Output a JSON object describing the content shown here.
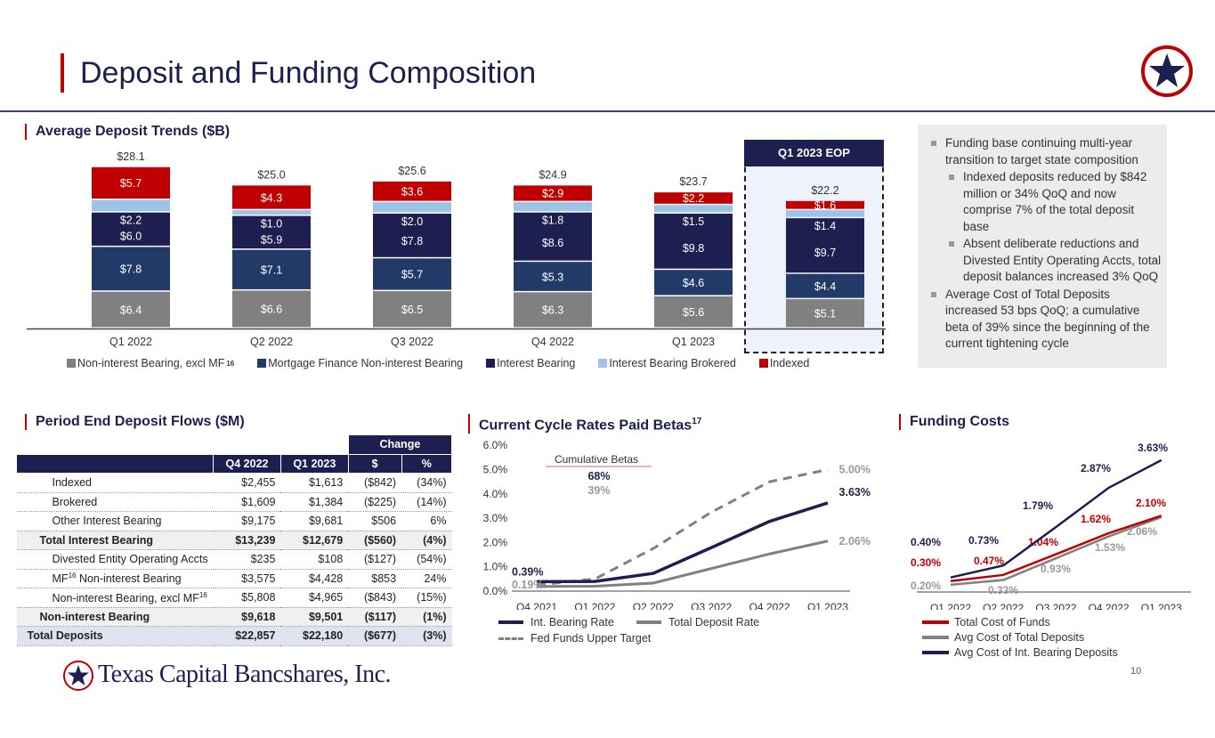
{
  "header": {
    "title": "Deposit and Funding Composition"
  },
  "sections": {
    "avg_deposits": "Average Deposit Trends ($B)",
    "flows": "Period End Deposit Flows ($M)",
    "betas": "Current Cycle Rates Paid Betas",
    "betas_sup": "17",
    "funding": "Funding Costs"
  },
  "eop_label": "Q1 2023 EOP",
  "bullets": [
    {
      "text": "Funding base continuing multi-year transition to target state composition",
      "level": 1
    },
    {
      "text": "Indexed deposits reduced by $842 million or 34% QoQ and now comprise 7% of the total deposit base",
      "level": 2
    },
    {
      "text": "Absent deliberate reductions and Divested Entity Operating Accts, total deposit balances increased 3% QoQ",
      "level": 2
    },
    {
      "text": "Average Cost of Total Deposits increased 53 bps QoQ; a cumulative beta of 39% since the beginning of the current tightening cycle",
      "level": 1
    }
  ],
  "table": {
    "change_header": "Change",
    "columns": [
      "Q4 2022",
      "Q1 2023",
      "$",
      "%"
    ],
    "rows": [
      {
        "label": "Indexed",
        "sup": "",
        "suffix": "",
        "values": [
          "$2,455",
          "$1,613",
          "($842)",
          "(34%)"
        ],
        "style": ""
      },
      {
        "label": "Brokered",
        "sup": "",
        "suffix": "",
        "values": [
          "$1,609",
          "$1,384",
          "($225)",
          "(14%)"
        ],
        "style": ""
      },
      {
        "label": "Other Interest Bearing",
        "sup": "",
        "suffix": "",
        "values": [
          "$9,175",
          "$9,681",
          "$506",
          "6%"
        ],
        "style": ""
      },
      {
        "label": "Total Interest Bearing",
        "sup": "",
        "suffix": "",
        "values": [
          "$13,239",
          "$12,679",
          "($560)",
          "(4%)"
        ],
        "style": "bold"
      },
      {
        "label": "Divested Entity Operating Accts",
        "sup": "",
        "suffix": "",
        "values": [
          "$235",
          "$108",
          "($127)",
          "(54%)"
        ],
        "style": ""
      },
      {
        "label": "MF",
        "sup": "16",
        "suffix": " Non-interest Bearing",
        "values": [
          "$3,575",
          "$4,428",
          "$853",
          "24%"
        ],
        "style": ""
      },
      {
        "label": "Non-interest Bearing, excl MF",
        "sup": "16",
        "suffix": "",
        "values": [
          "$5,808",
          "$4,965",
          "($843)",
          "(15%)"
        ],
        "style": ""
      },
      {
        "label": "Non-interest Bearing",
        "sup": "",
        "suffix": "",
        "values": [
          "$9,618",
          "$9,501",
          "($117)",
          "(1%)"
        ],
        "style": "bold"
      },
      {
        "label": "Total Deposits",
        "sup": "",
        "suffix": "",
        "values": [
          "$22,857",
          "$22,180",
          "($677)",
          "(3%)"
        ],
        "style": "tot"
      }
    ]
  },
  "footer": {
    "company": "Texas Capital Bancshares, Inc.",
    "page": "10"
  },
  "colors": {
    "red": "#c00000",
    "navy": "#1c1f4f",
    "mortgage": "#213a68",
    "gray": "#808080",
    "lightblue": "#9dc3e6"
  },
  "chart_data": [
    {
      "type": "bar",
      "stacked": true,
      "title": "Average Deposit Trends ($B)",
      "categories": [
        "Q1 2022",
        "Q2 2022",
        "Q3 2022",
        "Q4 2022",
        "Q1 2023",
        "Q1 2023 EOP"
      ],
      "category_labels": [
        "Q1 2022",
        "Q2 2022",
        "Q3 2022",
        "Q4 2022",
        "Q1 2023",
        ""
      ],
      "totals": [
        "$28.1",
        "$25.0",
        "$25.6",
        "$24.9",
        "$23.7",
        "$22.2"
      ],
      "series": [
        {
          "name": "Non-interest Bearing, excl MF",
          "sup": "16",
          "color": "#808080",
          "values": [
            6.4,
            6.6,
            6.5,
            6.3,
            5.6,
            5.1
          ],
          "labels": [
            "$6.4",
            "$6.6",
            "$6.5",
            "$6.3",
            "$5.6",
            "$5.1"
          ]
        },
        {
          "name": "Mortgage Finance Non-interest Bearing",
          "sup": "",
          "color": "#213a68",
          "values": [
            7.8,
            7.1,
            5.7,
            5.3,
            4.6,
            4.4
          ],
          "labels": [
            "$7.8",
            "$7.1",
            "$5.7",
            "$5.3",
            "$4.6",
            "$4.4"
          ]
        },
        {
          "name": "Interest Bearing",
          "sup": "",
          "color": "#1c1f4f",
          "values": [
            6.0,
            5.9,
            7.8,
            8.6,
            9.8,
            9.7
          ],
          "labels": [
            "$6.0",
            "$5.9",
            "$7.8",
            "$8.6",
            "$9.8",
            "$9.7"
          ]
        },
        {
          "name": "Interest Bearing Brokered",
          "sup": "",
          "color": "#9dc3e6",
          "values": [
            2.2,
            1.0,
            2.0,
            1.8,
            1.5,
            1.4
          ],
          "labels": [
            "$2.2",
            "$1.0",
            "$2.0",
            "$1.8",
            "$1.5",
            "$1.4"
          ]
        },
        {
          "name": "Indexed",
          "sup": "",
          "color": "#c00000",
          "values": [
            5.7,
            4.3,
            3.6,
            2.9,
            2.2,
            1.6
          ],
          "labels": [
            "$5.7",
            "$4.3",
            "$3.6",
            "$2.9",
            "$2.2",
            "$1.6"
          ]
        }
      ],
      "legend": "bottom"
    },
    {
      "type": "line",
      "title": "Current Cycle Rates Paid Betas",
      "categories": [
        "Q4 2021",
        "Q1 2022",
        "Q2 2022",
        "Q3 2022",
        "Q4 2022",
        "Q1 2023"
      ],
      "ylim": [
        0,
        6
      ],
      "yticks": [
        "0.0%",
        "1.0%",
        "2.0%",
        "3.0%",
        "4.0%",
        "5.0%",
        "6.0%"
      ],
      "series": [
        {
          "name": "Int. Bearing Rate",
          "color": "#1c1f4f",
          "dash": false,
          "values": [
            0.39,
            0.4,
            0.73,
            1.79,
            2.87,
            3.63
          ],
          "start_label": "0.39%",
          "end_label": "3.63%"
        },
        {
          "name": "Total Deposit Rate",
          "color": "#808080",
          "dash": false,
          "values": [
            0.19,
            0.2,
            0.33,
            0.93,
            1.53,
            2.06
          ],
          "start_label": "0.19%",
          "end_label": "2.06%"
        },
        {
          "name": "Fed Funds Upper Target",
          "color": "#808080",
          "dash": true,
          "values": [
            0.25,
            0.5,
            1.75,
            3.25,
            4.5,
            5.0
          ],
          "start_label": "",
          "end_label": "5.00%"
        }
      ],
      "annotation": {
        "title": "Cumulative Betas",
        "int_beta": "68%",
        "total_beta": "39%"
      },
      "legend": "bottom"
    },
    {
      "type": "line",
      "title": "Funding Costs",
      "categories": [
        "Q1 2022",
        "Q2 2022",
        "Q3 2022",
        "Q4 2022",
        "Q1 2023"
      ],
      "ylim": [
        0,
        4
      ],
      "series": [
        {
          "name": "Total Cost of Funds",
          "color": "#c00000",
          "values": [
            0.3,
            0.47,
            1.04,
            1.62,
            2.1
          ],
          "labels": [
            "0.30%",
            "0.47%",
            "1.04%",
            "1.62%",
            "2.10%"
          ]
        },
        {
          "name": "Avg Cost of Total Deposits",
          "color": "#808080",
          "values": [
            0.2,
            0.33,
            0.93,
            1.53,
            2.06
          ],
          "labels": [
            "0.20%",
            "0.33%",
            "0.93%",
            "1.53%",
            "2.06%"
          ]
        },
        {
          "name": "Avg Cost of Int. Bearing Deposits",
          "color": "#1c1f4f",
          "values": [
            0.4,
            0.73,
            1.79,
            2.87,
            3.63
          ],
          "labels": [
            "0.40%",
            "0.73%",
            "1.79%",
            "2.87%",
            "3.63%"
          ]
        }
      ],
      "legend": "bottom"
    }
  ]
}
